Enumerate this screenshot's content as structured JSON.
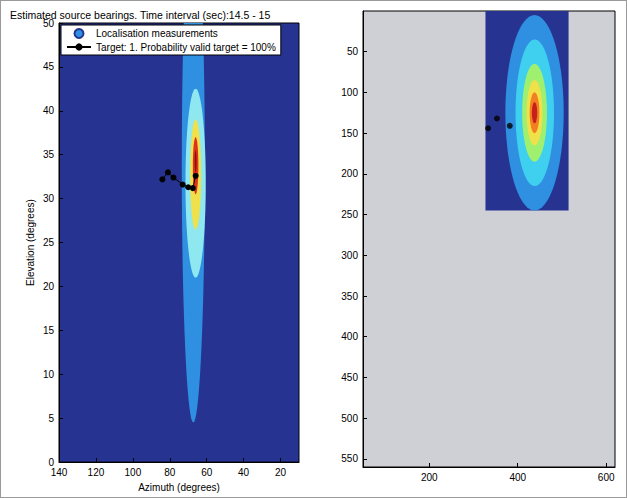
{
  "chart_data": [
    {
      "type": "contour",
      "title": "Estimated source bearings. Time interval (sec):14.5 - 15",
      "x_label": "Azimuth (degrees)",
      "y_label": "Elevation (degrees)",
      "xlim": [
        140,
        10
      ],
      "xticks": [
        140,
        120,
        100,
        80,
        60,
        40,
        20
      ],
      "ylim": [
        0,
        50
      ],
      "yticks": [
        0,
        5,
        10,
        15,
        20,
        25,
        30,
        35,
        40,
        45,
        50
      ],
      "legend": "upper left",
      "contours": {
        "name": "Localisation measurements",
        "color": "#263390",
        "levels": [
          {
            "x_range": [
              61,
              73.5
            ],
            "y_range": [
              4.5,
              63
            ],
            "color": "#2f8fe0"
          },
          {
            "x_range": [
              60.5,
              71.5
            ],
            "y_range": [
              21,
              42.5
            ],
            "color": "#8fe8f0"
          },
          {
            "x_range": [
              63,
              69
            ],
            "y_range": [
              26.5,
              39
            ],
            "color": "#f0e04a"
          },
          {
            "x_range": [
              64.5,
              67.5
            ],
            "y_range": [
              30.5,
              37
            ],
            "color": "#e0301e"
          },
          {
            "x_range": [
              65.5,
              66.5
            ],
            "y_range": [
              33,
              35.5
            ],
            "color": "#8b1010"
          }
        ]
      },
      "series": [
        {
          "name": "Target: 1. Probability valid target = 100%",
          "type": "line",
          "color": "#000000",
          "marker": "circle",
          "x": [
            84,
            81,
            78,
            73,
            70,
            67.5,
            66
          ],
          "values": [
            32.2,
            33,
            32.4,
            31.6,
            31.3,
            31.2,
            32.6
          ]
        }
      ]
    },
    {
      "type": "contour",
      "xlim": [
        50,
        620
      ],
      "xticks": [
        200,
        400,
        600
      ],
      "ylim": [
        560,
        0
      ],
      "yticks": [
        50,
        100,
        150,
        200,
        250,
        300,
        350,
        400,
        450,
        500,
        550
      ],
      "contours": {
        "color": "#263390",
        "x_range": [
          327,
          515
        ],
        "y_range": [
          0,
          245
        ],
        "levels": [
          {
            "x_range": [
              372,
              504
            ],
            "y_range": [
              5,
              245
            ],
            "color": "#2f8fe0"
          },
          {
            "x_range": [
              395,
              482
            ],
            "y_range": [
              35,
              215
            ],
            "color": "#3fd0f0"
          },
          {
            "x_range": [
              410,
              466
            ],
            "y_range": [
              65,
              185
            ],
            "color": "#a0f070"
          },
          {
            "x_range": [
              420,
              456
            ],
            "y_range": [
              85,
              165
            ],
            "color": "#f0e04a"
          },
          {
            "x_range": [
              427,
              449
            ],
            "y_range": [
              100,
              150
            ],
            "color": "#f08020"
          },
          {
            "x_range": [
              432,
              444
            ],
            "y_range": [
              112,
              138
            ],
            "color": "#c81e1e"
          }
        ]
      },
      "series": [
        {
          "type": "scatter",
          "color": "#000000",
          "marker": "circle",
          "x": [
            333,
            353,
            382
          ],
          "values": [
            144,
            132,
            141
          ]
        }
      ]
    }
  ]
}
